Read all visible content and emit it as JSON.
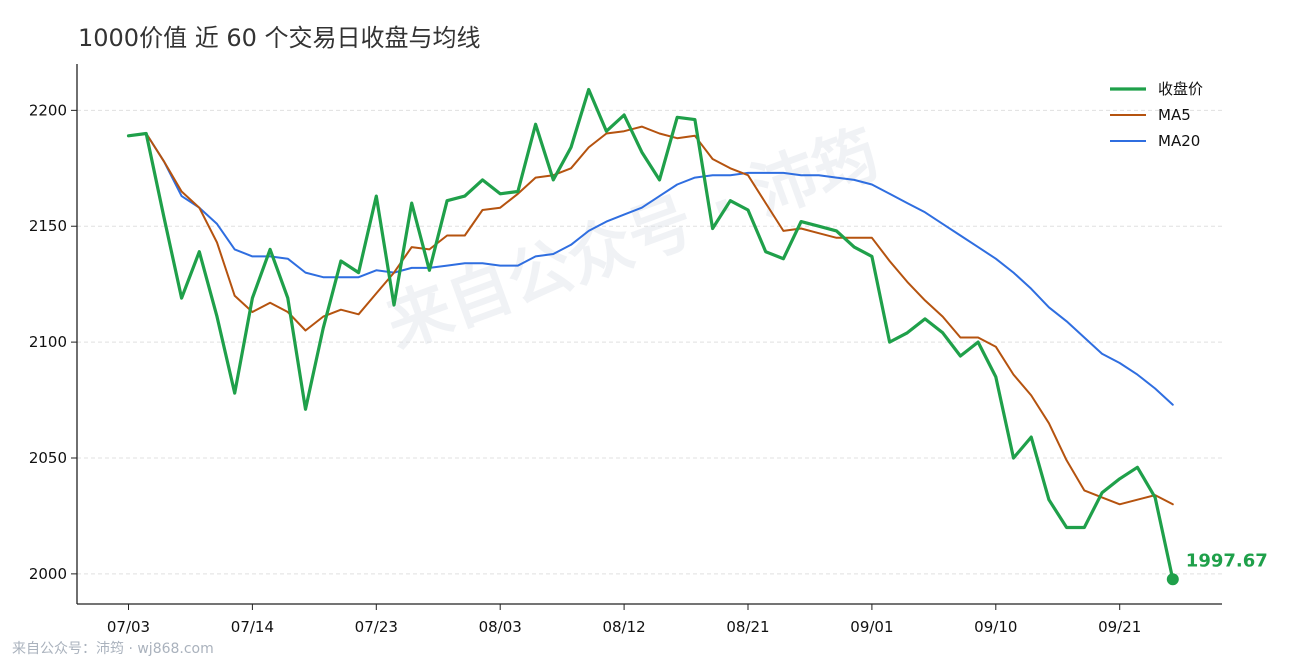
{
  "header": {
    "title": "1000价值 近 60 个交易日收盘与均线"
  },
  "footer": {
    "text": "来自公众号：沛筠 · wj868.com"
  },
  "watermark": {
    "text": "来自公众号 · 沛筠"
  },
  "colors": {
    "close": "#1fa04a",
    "ma5": "#b5530f",
    "ma20": "#2f6ee0",
    "axis": "#222222",
    "grid": "#e0e0e0"
  },
  "chart_data": {
    "type": "line",
    "title": "1000价值 近 60 个交易日收盘与均线",
    "xlabel": "",
    "ylabel": "",
    "ylim": [
      1987,
      2220
    ],
    "grid": true,
    "legend_position": "top-right",
    "x_tick_labels": [
      "07/03",
      "07/14",
      "07/23",
      "08/03",
      "08/12",
      "08/21",
      "09/01",
      "09/10",
      "09/21"
    ],
    "x_tick_indices": [
      0,
      7,
      14,
      21,
      28,
      35,
      42,
      49,
      56
    ],
    "y_ticks": [
      2000,
      2050,
      2100,
      2150,
      2200
    ],
    "series": [
      {
        "name": "收盘价",
        "start_index": 0,
        "values": [
          2189,
          2190,
          2154,
          2119,
          2139,
          2111,
          2078,
          2119,
          2140,
          2119,
          2071,
          2106,
          2135,
          2130,
          2163,
          2116,
          2160,
          2131,
          2161,
          2163,
          2170,
          2164,
          2165,
          2194,
          2170,
          2184,
          2209,
          2191,
          2198,
          2182,
          2170,
          2197,
          2196,
          2149,
          2161,
          2157,
          2139,
          2136,
          2152,
          2150,
          2148,
          2141,
          2137,
          2100,
          2104,
          2110,
          2104,
          2094,
          2100,
          2085,
          2050,
          2059,
          2032,
          2020,
          2020,
          2035,
          2041,
          2046,
          2033,
          1997.67
        ]
      },
      {
        "name": "MA5",
        "start_index": 0,
        "values": [
          2189,
          2190,
          2178,
          2165,
          2158,
          2143,
          2120,
          2113,
          2117,
          2113,
          2105,
          2111,
          2114,
          2112,
          2121,
          2130,
          2141,
          2140,
          2146,
          2146,
          2157,
          2158,
          2164,
          2171,
          2172,
          2175,
          2184,
          2190,
          2191,
          2193,
          2190,
          2188,
          2189,
          2179,
          2175,
          2172,
          2160,
          2148,
          2149,
          2147,
          2145,
          2145,
          2145,
          2135,
          2126,
          2118,
          2111,
          2102,
          2102,
          2098,
          2086,
          2077,
          2065,
          2049,
          2036,
          2033,
          2030,
          2032,
          2034,
          2030
        ]
      },
      {
        "name": "MA20",
        "start_index": 0,
        "values": [
          2189,
          2190,
          2178,
          2163,
          2158,
          2151,
          2140,
          2137,
          2137,
          2136,
          2130,
          2128,
          2128,
          2128,
          2131,
          2130,
          2132,
          2132,
          2133,
          2134,
          2134,
          2133,
          2133,
          2137,
          2138,
          2142,
          2148,
          2152,
          2155,
          2158,
          2163,
          2168,
          2171,
          2172,
          2172,
          2173,
          2173,
          2173,
          2172,
          2172,
          2171,
          2170,
          2168,
          2164,
          2160,
          2156,
          2151,
          2146,
          2141,
          2136,
          2130,
          2123,
          2115,
          2109,
          2102,
          2095,
          2091,
          2086,
          2080,
          2073
        ]
      }
    ],
    "end_point": {
      "index": 59,
      "value": 1997.67,
      "label": "1997.67"
    }
  }
}
